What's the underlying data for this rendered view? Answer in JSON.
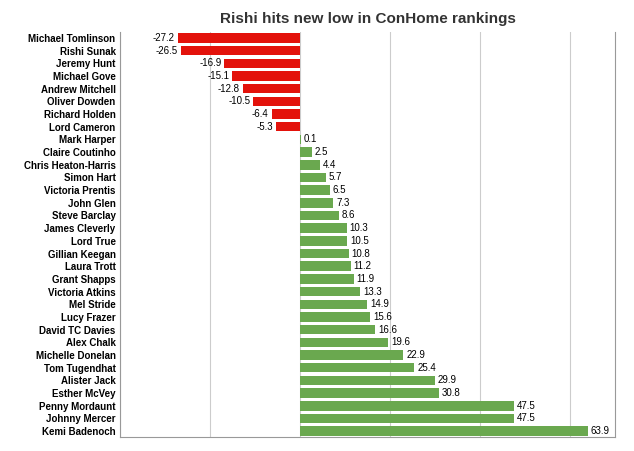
{
  "chart_data": {
    "type": "bar",
    "orientation": "horizontal",
    "title": "Rishi hits new low in ConHome rankings",
    "categories": [
      "Michael Tomlinson",
      "Rishi Sunak",
      "Jeremy Hunt",
      "Michael Gove",
      "Andrew Mitchell",
      "Oliver Dowden",
      "Richard Holden",
      "Lord Cameron",
      "Mark Harper",
      "Claire Coutinho",
      "Chris Heaton-Harris",
      "Simon Hart",
      "Victoria Prentis",
      "John Glen",
      "Steve Barclay",
      "James Cleverly",
      "Lord True",
      "Gillian Keegan",
      "Laura Trott",
      "Grant Shapps",
      "Victoria Atkins",
      "Mel Stride",
      "Lucy Frazer",
      "David TC Davies",
      "Alex Chalk",
      "Michelle Donelan",
      "Tom Tugendhat",
      "Alister Jack",
      "Esther McVey",
      "Penny Mordaunt",
      "Johnny Mercer",
      "Kemi Badenoch"
    ],
    "values": [
      -27.2,
      -26.5,
      -16.9,
      -15.1,
      -12.8,
      -10.5,
      -6.4,
      -5.3,
      0.1,
      2.5,
      4.4,
      5.7,
      6.5,
      7.3,
      8.6,
      10.3,
      10.5,
      10.8,
      11.2,
      11.9,
      13.3,
      14.9,
      15.6,
      16.6,
      19.6,
      22.9,
      25.4,
      29.9,
      30.8,
      47.5,
      47.5,
      63.9
    ],
    "colors": [
      "#e3120b",
      "#e3120b",
      "#e3120b",
      "#e3120b",
      "#e3120b",
      "#e3120b",
      "#e3120b",
      "#e3120b",
      "#6aa84f",
      "#6aa84f",
      "#6aa84f",
      "#6aa84f",
      "#6aa84f",
      "#6aa84f",
      "#6aa84f",
      "#6aa84f",
      "#6aa84f",
      "#6aa84f",
      "#6aa84f",
      "#6aa84f",
      "#6aa84f",
      "#6aa84f",
      "#6aa84f",
      "#6aa84f",
      "#6aa84f",
      "#6aa84f",
      "#6aa84f",
      "#6aa84f",
      "#6aa84f",
      "#6aa84f",
      "#6aa84f",
      "#6aa84f"
    ],
    "xlim": [
      -40,
      70
    ],
    "xticks": [
      -40,
      -20,
      0,
      20,
      40,
      60
    ],
    "grid": true,
    "data_labels": true,
    "tick_labels": "y"
  }
}
